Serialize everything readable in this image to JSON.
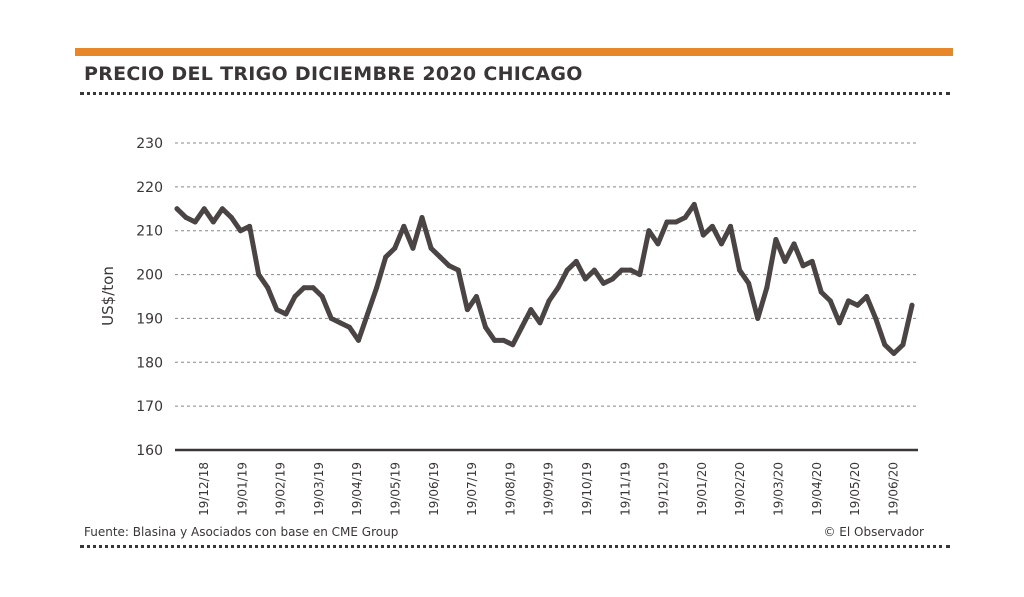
{
  "title": "PRECIO DEL TRIGO DICIEMBRE 2020 CHICAGO",
  "source": "Fuente: Blasina y Asociados con base en CME Group",
  "credit": "© El Observador",
  "colors": {
    "accent": "#e8862a",
    "line": "#4a4445",
    "text": "#3a3536"
  },
  "chart_data": {
    "type": "line",
    "title": "PRECIO DEL TRIGO DICIEMBRE 2020 CHICAGO",
    "ylabel": "US$/ton",
    "xlabel": "",
    "ylim": [
      160,
      230
    ],
    "yticks": [
      160,
      170,
      180,
      190,
      200,
      210,
      220,
      230
    ],
    "xtick_labels": [
      "19/12/18",
      "19/01/19",
      "19/02/19",
      "19/03/19",
      "19/04/19",
      "19/05/19",
      "19/06/19",
      "19/07/19",
      "19/08/19",
      "19/09/19",
      "19/10/19",
      "19/11/19",
      "19/12/19",
      "19/01/20",
      "19/02/20",
      "19/03/20",
      "19/04/20",
      "19/05/20",
      "19/06/20"
    ],
    "grid": true,
    "series": [
      {
        "name": "Precio",
        "values": [
          215,
          213,
          212,
          215,
          212,
          215,
          213,
          210,
          211,
          200,
          197,
          192,
          191,
          195,
          197,
          197,
          195,
          190,
          189,
          188,
          185,
          191,
          197,
          204,
          206,
          211,
          206,
          213,
          206,
          204,
          202,
          201,
          192,
          195,
          188,
          185,
          185,
          184,
          188,
          192,
          189,
          194,
          197,
          201,
          203,
          199,
          201,
          198,
          199,
          201,
          201,
          200,
          210,
          207,
          212,
          212,
          213,
          216,
          209,
          211,
          207,
          211,
          201,
          198,
          190,
          197,
          208,
          203,
          207,
          202,
          203,
          196,
          194,
          189,
          194,
          193,
          195,
          190,
          184,
          182,
          184,
          193
        ]
      }
    ]
  }
}
